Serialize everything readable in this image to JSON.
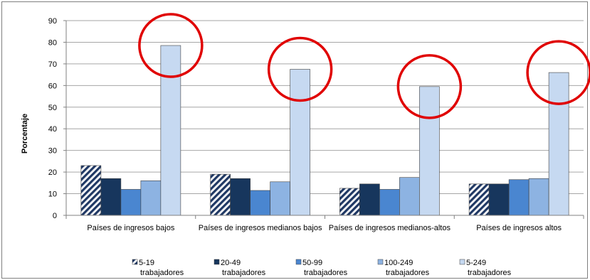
{
  "chart_data": {
    "type": "bar",
    "ylabel": "Porcentaje",
    "xlabel": "",
    "ylim": [
      0,
      90
    ],
    "yticks": [
      0,
      10,
      20,
      30,
      40,
      50,
      60,
      70,
      80,
      90
    ],
    "grid": true,
    "legend_position": "bottom",
    "categories": [
      "Países de ingresos bajos",
      "Países de ingresos medianos bajos",
      "Países de ingresos medianos-altos",
      "Países de ingresos altos"
    ],
    "series": [
      {
        "name": "5-19 trabajadores",
        "name_lines": [
          "5-19",
          "trabajadores"
        ],
        "color": "#1f3864",
        "pattern": "hatched",
        "values": [
          23,
          19,
          12.5,
          14.5
        ]
      },
      {
        "name": "20-49 trabajadores",
        "name_lines": [
          "20-49",
          "trabajadores"
        ],
        "color": "#17365d",
        "pattern": "solid",
        "values": [
          17,
          17,
          14.5,
          14.5
        ]
      },
      {
        "name": "50-99 trabajadores",
        "name_lines": [
          "50-99",
          "trabajadores"
        ],
        "color": "#4a86d0",
        "pattern": "solid",
        "values": [
          12,
          11.5,
          12,
          16.5
        ]
      },
      {
        "name": "100-249 trabajadores",
        "name_lines": [
          "100-249",
          "trabajadores"
        ],
        "color": "#8db3e2",
        "pattern": "solid",
        "values": [
          16,
          15.5,
          17.5,
          17
        ]
      },
      {
        "name": "5-249 trabajadores",
        "name_lines": [
          "5-249",
          "trabajadores"
        ],
        "color": "#c6d9f1",
        "pattern": "solid",
        "values": [
          78.5,
          67.5,
          59.5,
          66
        ]
      }
    ],
    "highlight": {
      "series": "5-249 trabajadores",
      "shape": "circle",
      "color": "#e00000"
    }
  }
}
